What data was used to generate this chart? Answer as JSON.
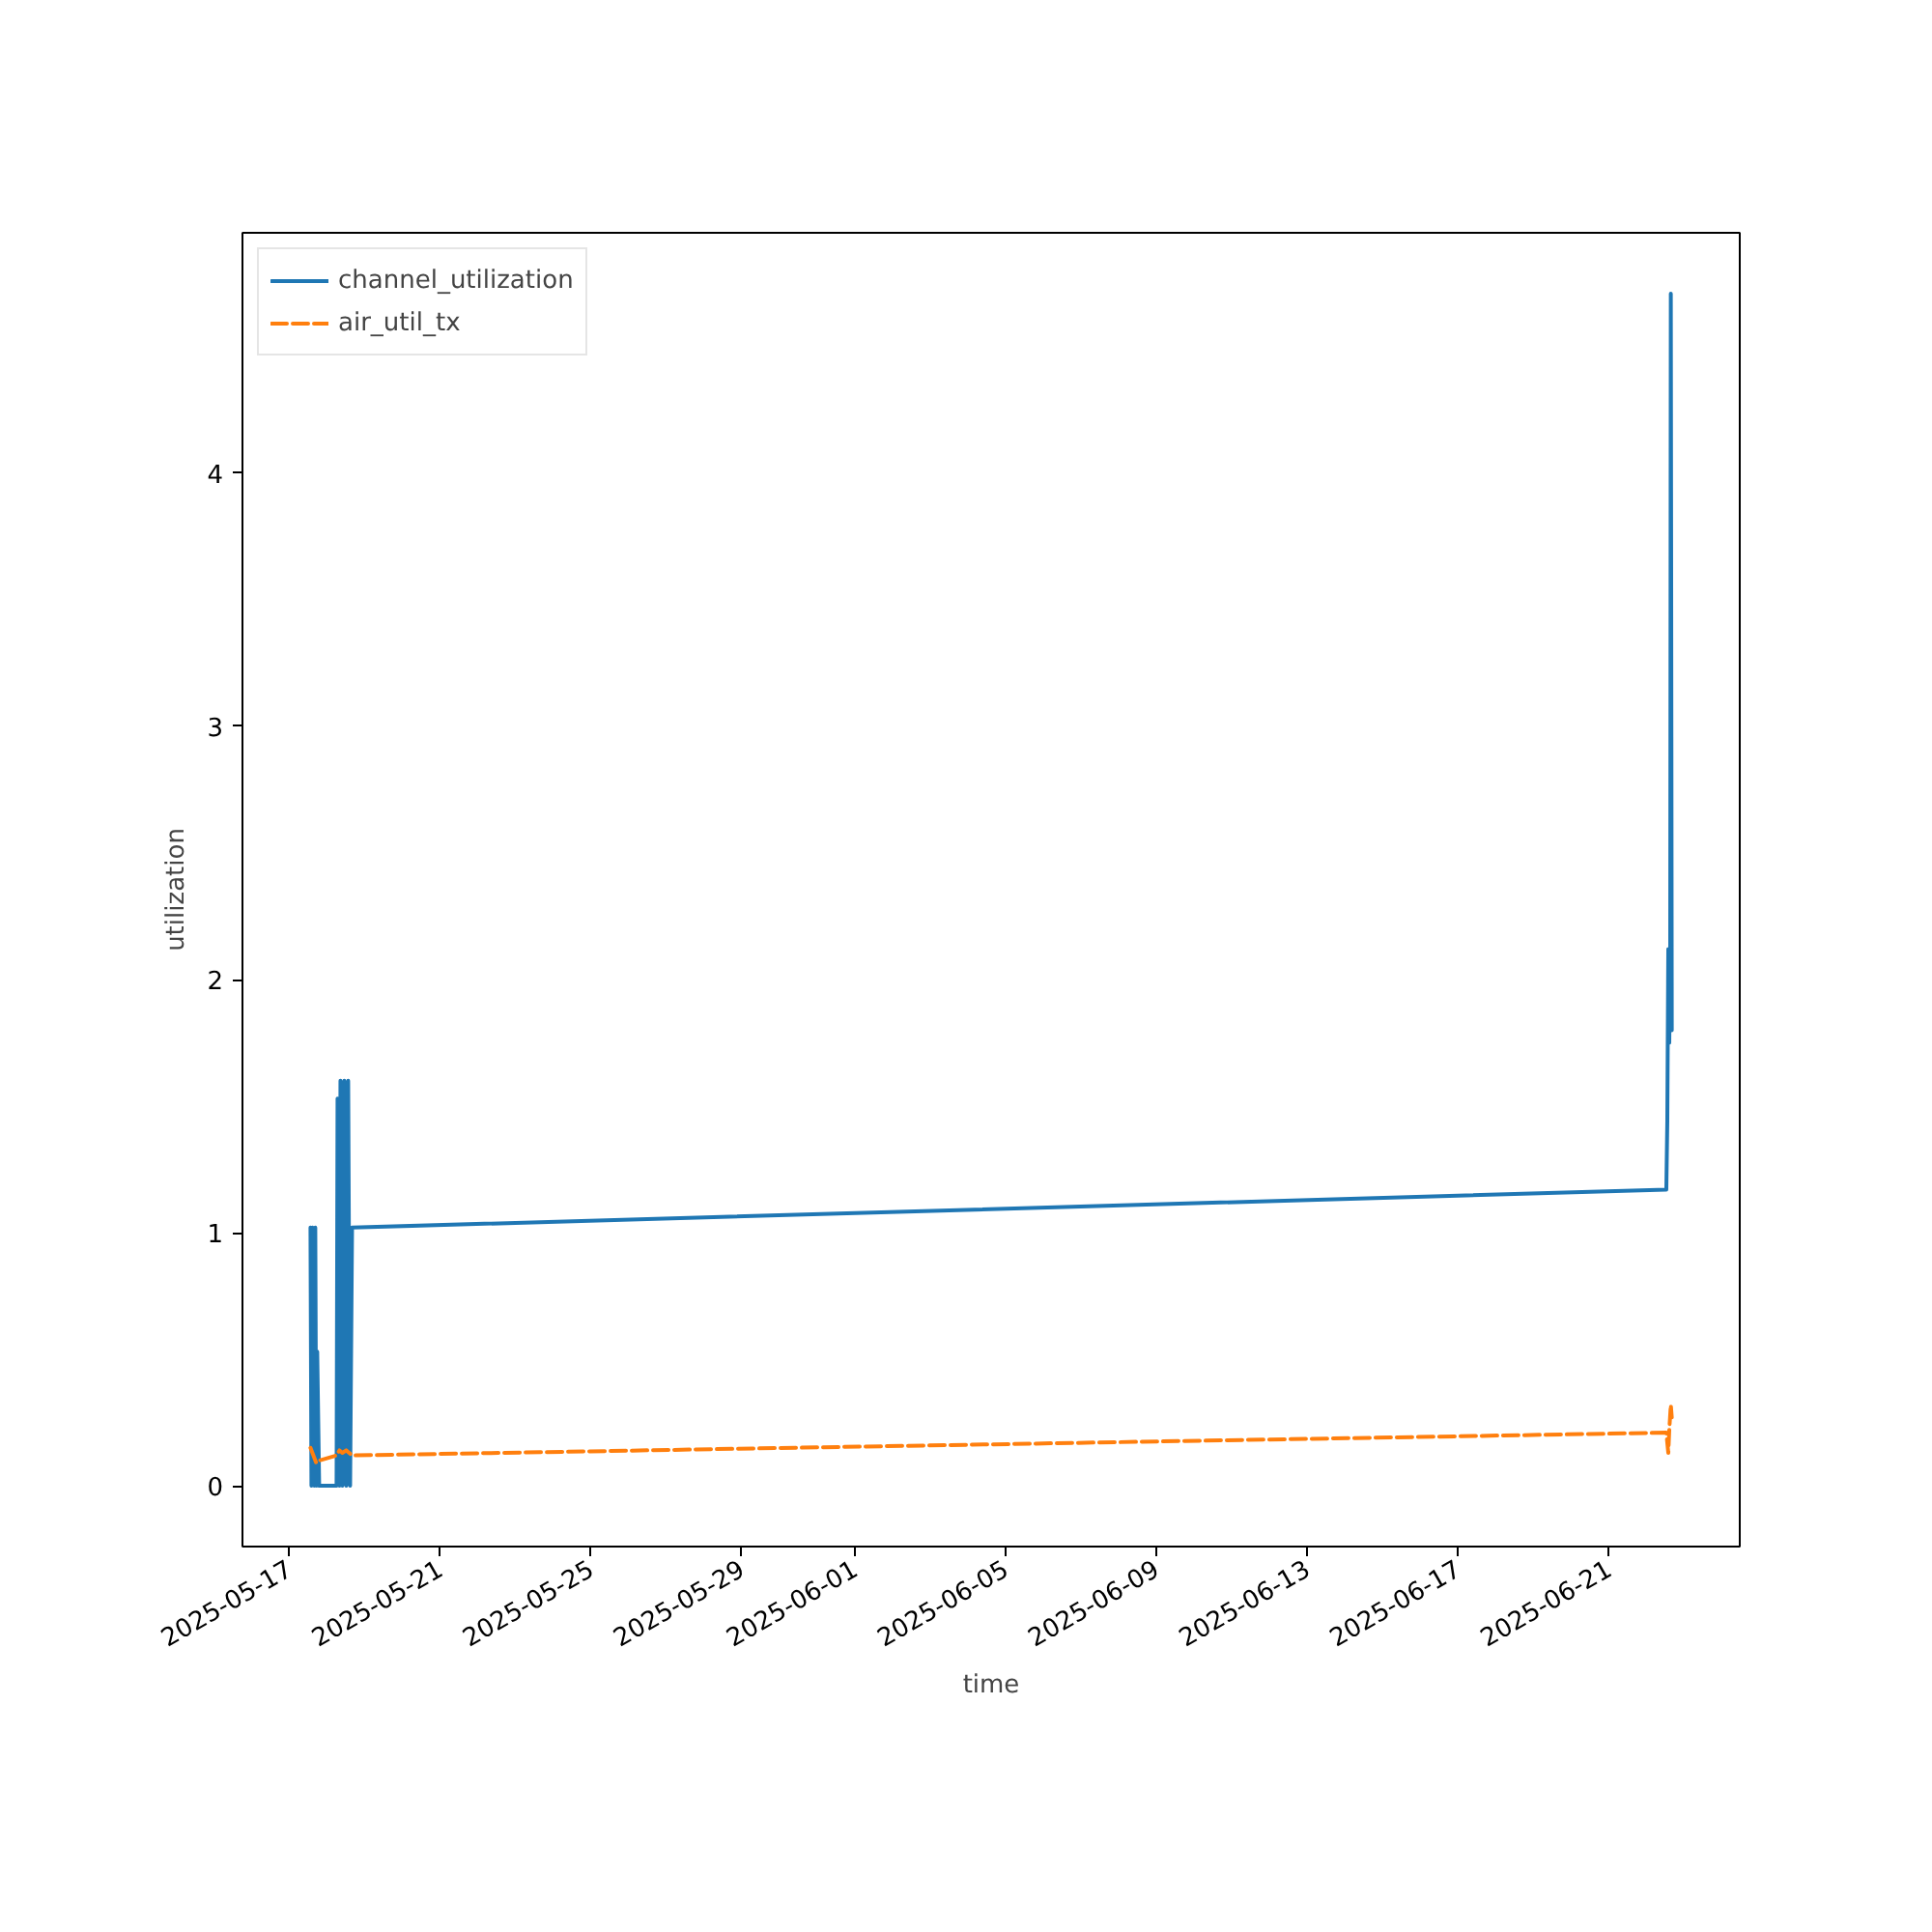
{
  "chart_data": {
    "type": "line",
    "xlabel": "time",
    "ylabel": "utilization",
    "xlim": [
      "2025-05-15T18:15",
      "2025-06-24T11:30"
    ],
    "ylim": [
      -0.24,
      4.95
    ],
    "xticks": [
      "2025-05-17",
      "2025-05-21",
      "2025-05-25",
      "2025-05-29",
      "2025-06-01",
      "2025-06-05",
      "2025-06-09",
      "2025-06-13",
      "2025-06-17",
      "2025-06-21"
    ],
    "yticks": [
      0,
      1,
      2,
      3,
      4
    ],
    "grid": false,
    "legend": "top left",
    "series": [
      {
        "name": "channel_utilization",
        "color": "#1f77b4",
        "line_style": "solid",
        "x": [
          "2025-05-17T13:33",
          "2025-05-17T14:10",
          "2025-05-17T14:47",
          "2025-05-17T16:01",
          "2025-05-17T16:37",
          "2025-05-17T17:14",
          "2025-05-17T17:51",
          "2025-05-17T19:05",
          "2025-05-18T06:10",
          "2025-05-18T06:47",
          "2025-05-18T08:01",
          "2025-05-18T08:38",
          "2025-05-18T09:52",
          "2025-05-18T11:05",
          "2025-05-18T12:20",
          "2025-05-18T13:33",
          "2025-05-18T14:47",
          "2025-05-18T16:01",
          "2025-06-22T12:45",
          "2025-06-22T13:22",
          "2025-06-22T14:00",
          "2025-06-22T14:37",
          "2025-06-22T15:13",
          "2025-06-22T15:36",
          "2025-06-22T16:13"
        ],
        "values": [
          1.02,
          0,
          1.02,
          0,
          1.02,
          0,
          0.53,
          0,
          0,
          1.53,
          0,
          1.6,
          0,
          1.6,
          0,
          1.6,
          0,
          1.02,
          1.17,
          1.44,
          2.12,
          1.75,
          2.12,
          4.71,
          1.8
        ]
      },
      {
        "name": "air_util_tx",
        "color": "#ff7f0e",
        "line_style": "dashed",
        "x": [
          "2025-05-17T13:33",
          "2025-05-17T14:47",
          "2025-05-17T17:14",
          "2025-05-17T19:05",
          "2025-05-18T06:10",
          "2025-05-18T08:01",
          "2025-05-18T09:52",
          "2025-05-18T12:20",
          "2025-05-18T16:01",
          "2025-06-22T12:45",
          "2025-06-22T14:00",
          "2025-06-22T14:37",
          "2025-06-22T15:36",
          "2025-06-22T16:13"
        ],
        "values": [
          0.15,
          0.13,
          0.09,
          0.1,
          0.12,
          0.14,
          0.13,
          0.14,
          0.12,
          0.21,
          0.13,
          0.22,
          0.32,
          0.27
        ]
      }
    ]
  }
}
